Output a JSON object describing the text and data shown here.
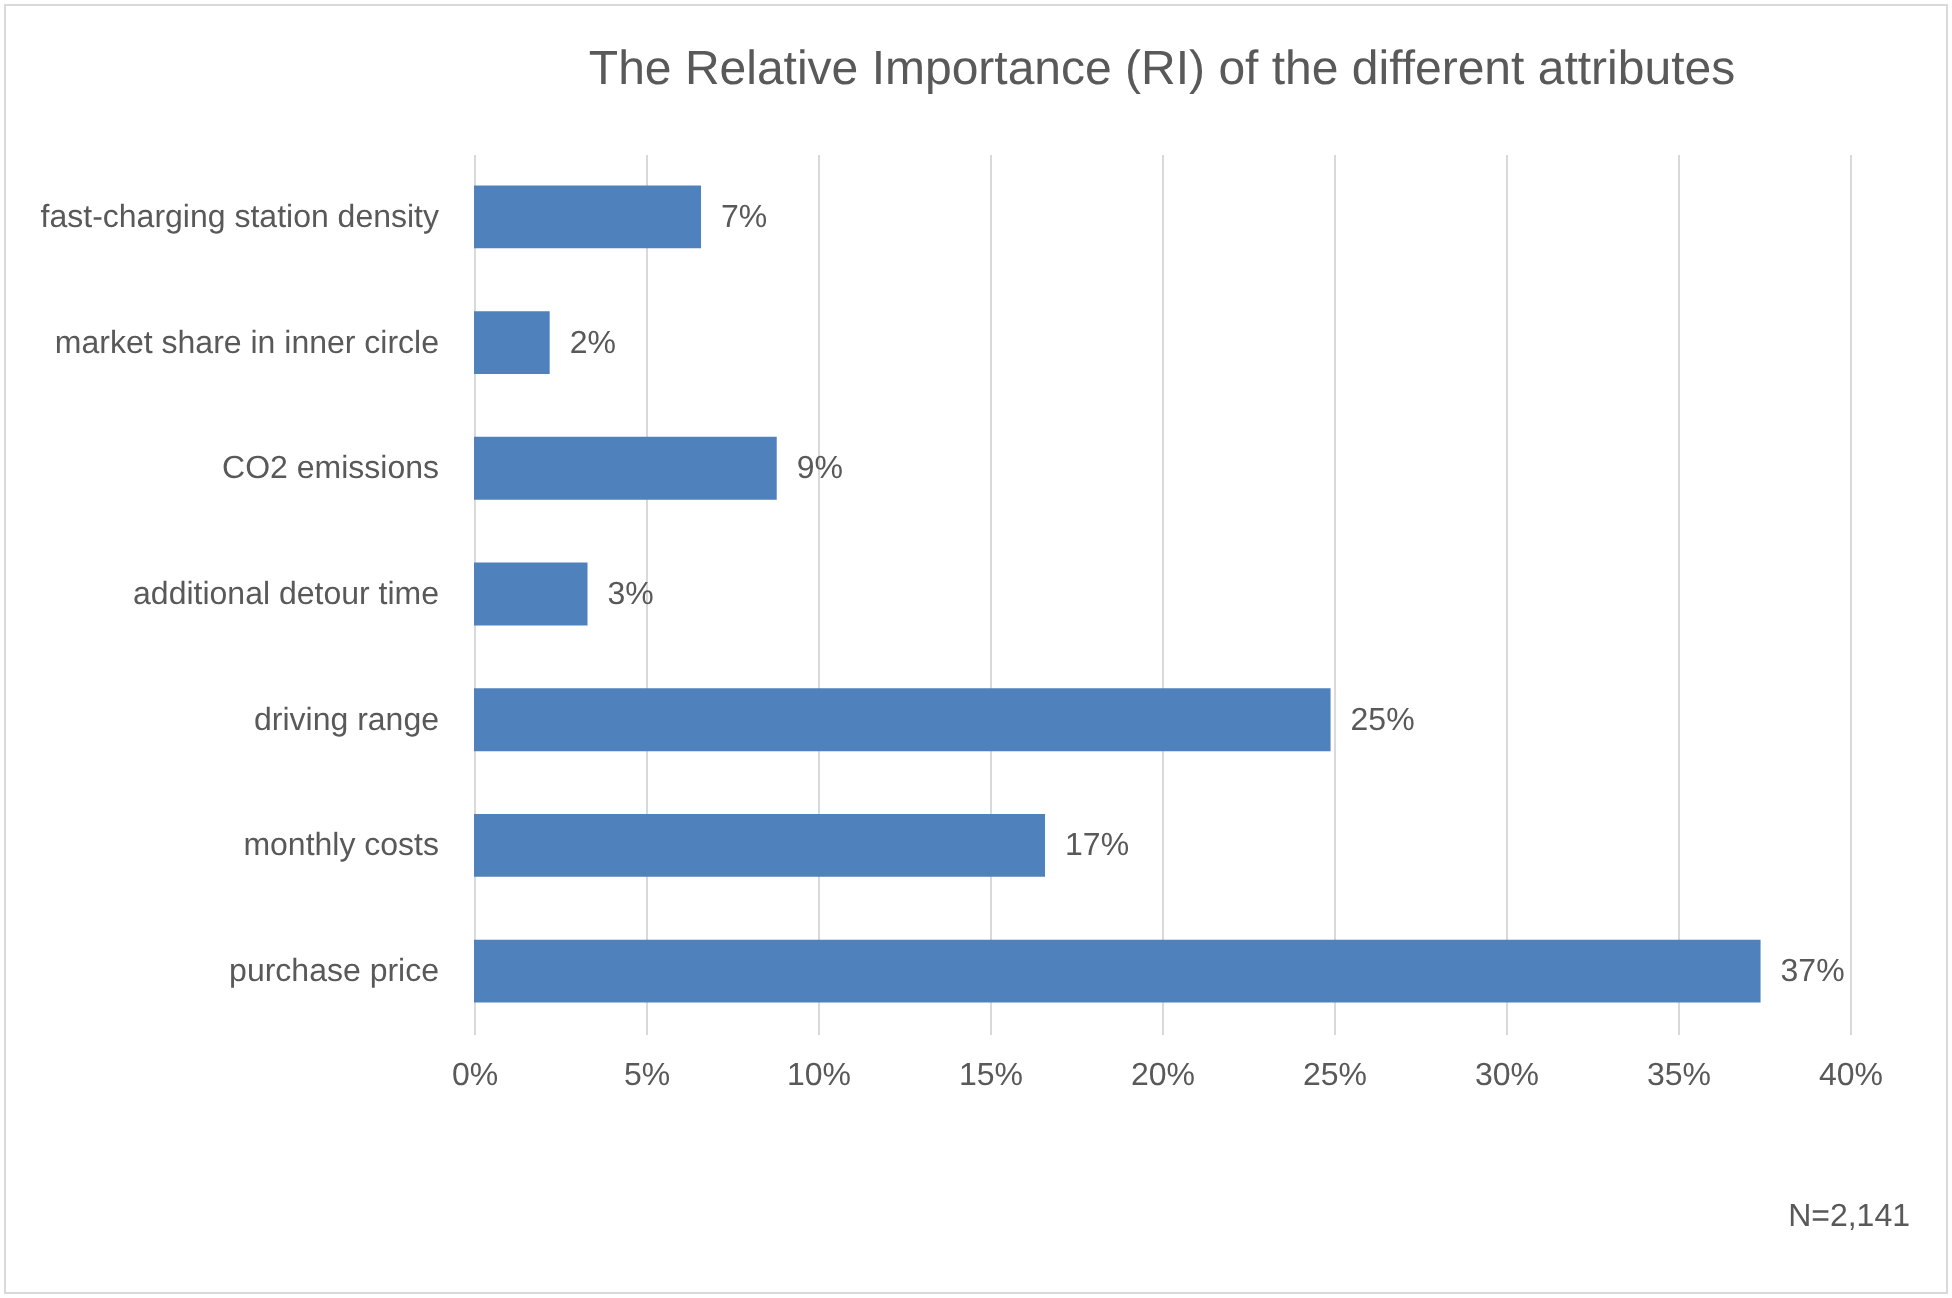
{
  "chart_data": {
    "type": "bar",
    "orientation": "horizontal",
    "title": "The Relative Importance (RI) of the different attributes",
    "categories": [
      "fast-charging station density",
      "market share in inner circle",
      "CO2 emissions",
      "additional detour time",
      "driving range",
      "monthly costs",
      "purchase price"
    ],
    "values": [
      6.6,
      2.2,
      8.8,
      3.3,
      24.9,
      16.6,
      37.4
    ],
    "value_labels": [
      "7%",
      "2%",
      "9%",
      "3%",
      "25%",
      "17%",
      "37%"
    ],
    "color": "#4f81bd",
    "xlim": [
      0,
      40
    ],
    "xticks": [
      {
        "value": 0,
        "label": "0%"
      },
      {
        "value": 5,
        "label": "5%"
      },
      {
        "value": 10,
        "label": "10%"
      },
      {
        "value": 15,
        "label": "15%"
      },
      {
        "value": 20,
        "label": "20%"
      },
      {
        "value": 25,
        "label": "25%"
      },
      {
        "value": 30,
        "label": "30%"
      },
      {
        "value": 35,
        "label": "35%"
      },
      {
        "value": 40,
        "label": "40%"
      }
    ],
    "grid": "x",
    "annotations": [
      "N=2,141"
    ]
  }
}
